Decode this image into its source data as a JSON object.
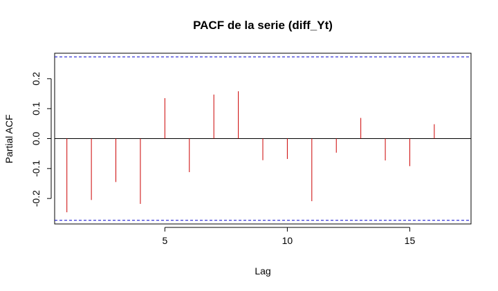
{
  "chart_data": {
    "type": "bar",
    "title": "PACF de la serie (diff_Yt)",
    "xlabel": "Lag",
    "ylabel": "Partial ACF",
    "xlim": [
      0.5,
      17.5
    ],
    "ylim": [
      -0.285,
      0.285
    ],
    "x_ticks": [
      5,
      10,
      15
    ],
    "x_tick_labels": [
      "5",
      "10",
      "15"
    ],
    "y_ticks": [
      -0.2,
      -0.1,
      0.0,
      0.1,
      0.2
    ],
    "y_tick_labels": [
      "-0.2",
      "-0.1",
      "0.0",
      "0.1",
      "0.2"
    ],
    "lags": [
      1,
      2,
      3,
      4,
      5,
      6,
      7,
      8,
      9,
      10,
      11,
      12,
      13,
      14,
      15,
      16
    ],
    "values": [
      -0.246,
      -0.205,
      -0.145,
      -0.218,
      0.135,
      -0.112,
      0.147,
      0.158,
      -0.072,
      -0.068,
      -0.209,
      -0.047,
      0.069,
      -0.073,
      -0.092,
      0.048
    ],
    "confidence_bound": 0.273,
    "colors": {
      "spikes": "#cc0000",
      "bounds": "#0000cc",
      "zero_line": "#000000",
      "frame": "#000000"
    }
  }
}
